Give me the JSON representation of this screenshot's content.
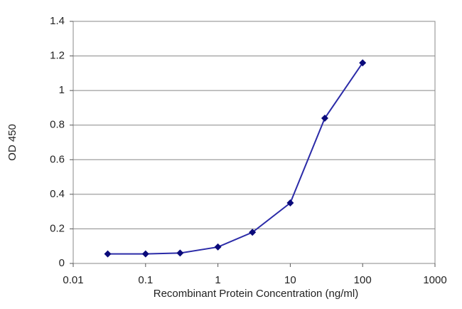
{
  "chart_data": {
    "type": "line",
    "x_label": "Recombinant Protein Concentration (ng/ml)",
    "y_label": "OD 450",
    "x": [
      0.03,
      0.1,
      0.3,
      1,
      3,
      10,
      30,
      100
    ],
    "values": [
      0.055,
      0.055,
      0.06,
      0.095,
      0.18,
      0.35,
      0.84,
      1.16
    ],
    "color": "#2b2ba8",
    "marker_color": "#0a0a7a",
    "xscale": "log",
    "xlim": [
      0.01,
      1000
    ],
    "xticks": [
      0.01,
      0.1,
      1,
      10,
      100,
      1000
    ],
    "ylim": [
      0,
      1.4
    ],
    "yticks": [
      0,
      0.2,
      0.4,
      0.6,
      0.8,
      1,
      1.2,
      1.4
    ],
    "grid": true
  }
}
